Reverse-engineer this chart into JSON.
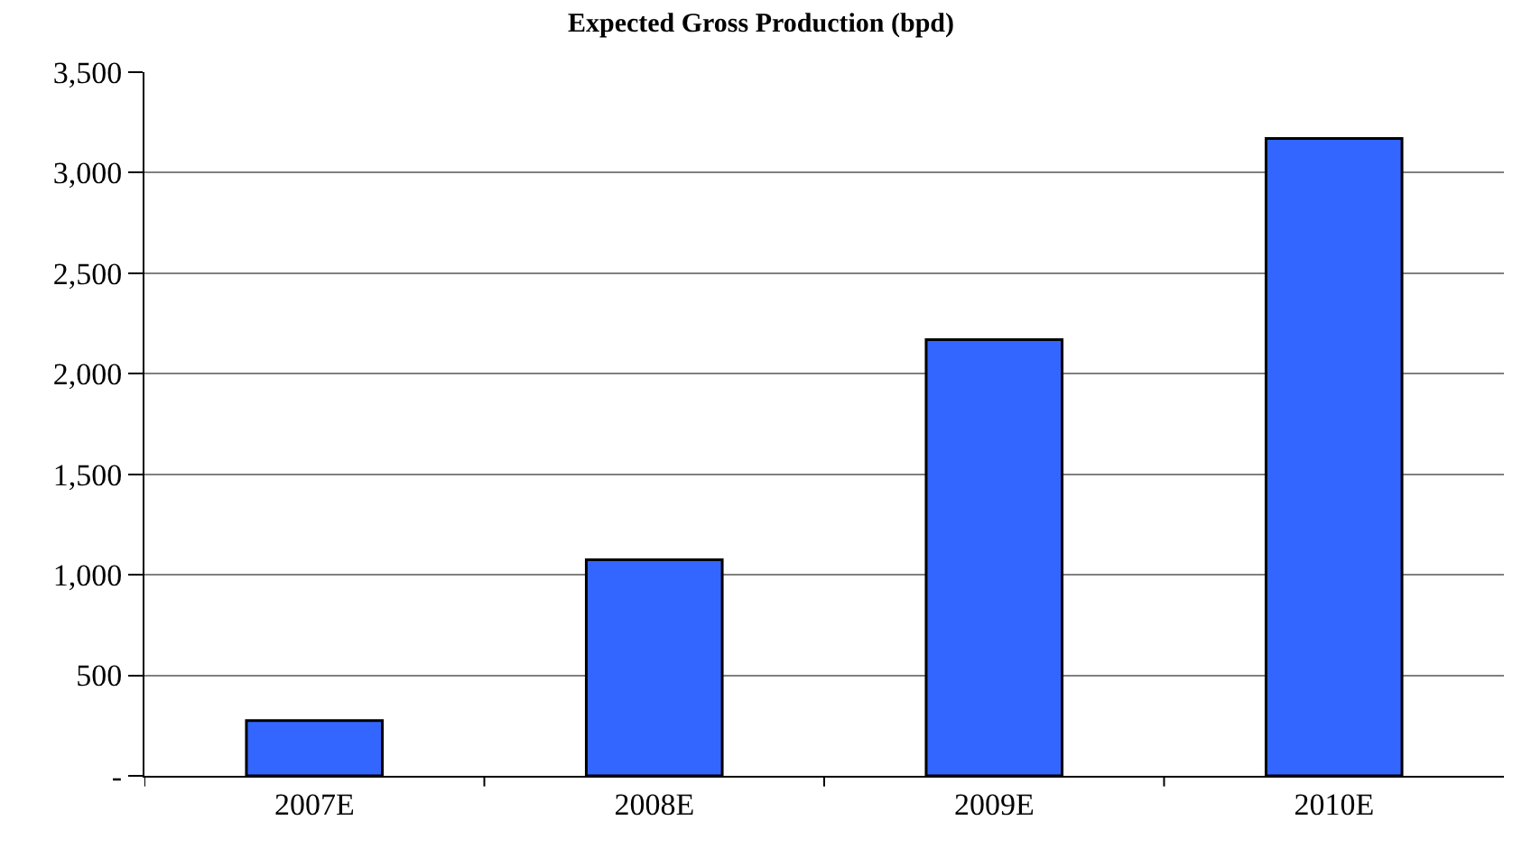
{
  "chart_data": {
    "type": "bar",
    "title": "Expected Gross Production (bpd)",
    "categories": [
      "2007E",
      "2008E",
      "2009E",
      "2010E"
    ],
    "values": [
      275,
      1075,
      2170,
      3170
    ],
    "color": "#3366ff",
    "ylim": [
      0,
      3500
    ],
    "yticks": [
      {
        "value": 0,
        "label": "-"
      },
      {
        "value": 500,
        "label": "500"
      },
      {
        "value": 1000,
        "label": "1,000"
      },
      {
        "value": 1500,
        "label": "1,500"
      },
      {
        "value": 2000,
        "label": "2,000"
      },
      {
        "value": 2500,
        "label": "2,500"
      },
      {
        "value": 3000,
        "label": "3,000"
      },
      {
        "value": 3500,
        "label": "3,500"
      }
    ],
    "grid": "y",
    "legend": false
  }
}
